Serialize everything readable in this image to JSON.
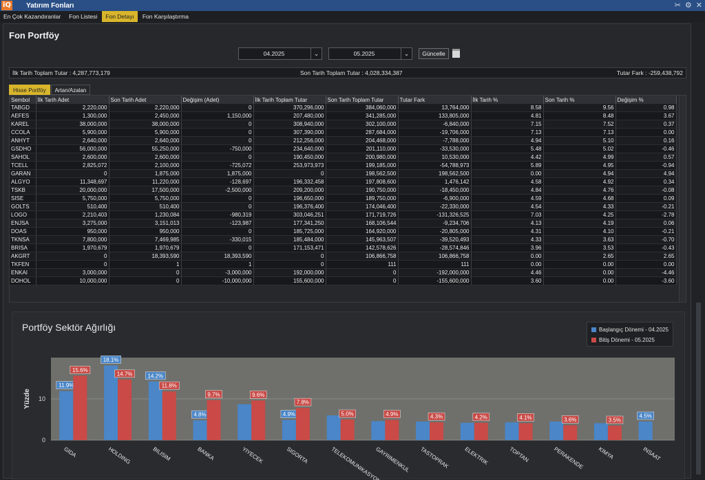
{
  "app": {
    "logo": "iQ",
    "title": "Yatırım Fonları"
  },
  "icons": [
    "tools-icon",
    "settings-icon",
    "close-icon"
  ],
  "menu": {
    "tabs": [
      {
        "label": "En Çok Kazandıranlar",
        "active": false
      },
      {
        "label": "Fon Listesi",
        "active": false
      },
      {
        "label": "Fon Detayı",
        "active": true
      },
      {
        "label": "Fon Karşılaştırma",
        "active": false
      }
    ]
  },
  "page": {
    "title": "Fon Portföy"
  },
  "filters": {
    "start_date": "04.2025",
    "end_date": "05.2025",
    "update_label": "Güncelle"
  },
  "summary": {
    "first_total": "İlk Tarih Toplam Tutar : 4,287,773,179",
    "last_total": "Son Tarih Toplam Tutar : 4,028,334,387",
    "diff": "Tutar Fark : -259,438,792"
  },
  "subtabs": [
    {
      "label": "Hisse Portföy",
      "active": true
    },
    {
      "label": "Artan/Azalan",
      "active": false
    }
  ],
  "table": {
    "columns": [
      "Sembol",
      "İlk Tarih Adet",
      "Son Tarih Adet",
      "Değişim (Adet)",
      "İlk Tarih Toplam Tutar",
      "Son Tarih Toplam Tutar",
      "Tutar Fark",
      "İlk Tarih %",
      "Son Tarih %",
      "Değişim %"
    ],
    "rows": [
      [
        "TABGD",
        "2,220,000",
        "2,220,000",
        "0",
        "370,296,000",
        "384,060,000",
        "13,764,000",
        "8.58",
        "9.56",
        "0.98"
      ],
      [
        "AEFES",
        "1,300,000",
        "2,450,000",
        "1,150,000",
        "207,480,000",
        "341,285,000",
        "133,805,000",
        "4.81",
        "8.48",
        "3.67"
      ],
      [
        "KAREL",
        "38,000,000",
        "38,000,000",
        "0",
        "308,940,000",
        "302,100,000",
        "-6,840,000",
        "7.15",
        "7.52",
        "0.37"
      ],
      [
        "CCOLA",
        "5,900,000",
        "5,900,000",
        "0",
        "307,390,000",
        "287,684,000",
        "-19,706,000",
        "7.13",
        "7.13",
        "0.00"
      ],
      [
        "ANHYT",
        "2,640,000",
        "2,640,000",
        "0",
        "212,256,000",
        "204,468,000",
        "-7,788,000",
        "4.94",
        "5.10",
        "0.16"
      ],
      [
        "GSDHO",
        "56,000,000",
        "55,250,000",
        "-750,000",
        "234,640,000",
        "201,110,000",
        "-33,530,000",
        "5.48",
        "5.02",
        "-0.46"
      ],
      [
        "SAHOL",
        "2,600,000",
        "2,600,000",
        "0",
        "190,450,000",
        "200,980,000",
        "10,530,000",
        "4.42",
        "4.99",
        "0.57"
      ],
      [
        "TCELL",
        "2,825,072",
        "2,100,000",
        "-725,072",
        "253,973,973",
        "199,185,000",
        "-54,788,973",
        "5.89",
        "4.95",
        "-0.94"
      ],
      [
        "GARAN",
        "0",
        "1,875,000",
        "1,875,000",
        "0",
        "198,562,500",
        "198,562,500",
        "0.00",
        "4.94",
        "4.94"
      ],
      [
        "ALGYO",
        "11,348,697",
        "11,220,000",
        "-128,697",
        "196,332,458",
        "197,808,600",
        "1,476,142",
        "4.58",
        "4.92",
        "0.34"
      ],
      [
        "TSKB",
        "20,000,000",
        "17,500,000",
        "-2,500,000",
        "209,200,000",
        "190,750,000",
        "-18,450,000",
        "4.84",
        "4.76",
        "-0.08"
      ],
      [
        "SISE",
        "5,750,000",
        "5,750,000",
        "0",
        "196,650,000",
        "189,750,000",
        "-6,900,000",
        "4.59",
        "4.68",
        "0.09"
      ],
      [
        "GOLTS",
        "510,400",
        "510,400",
        "0",
        "196,376,400",
        "174,046,400",
        "-22,330,000",
        "4.54",
        "4.33",
        "-0.21"
      ],
      [
        "LOGO",
        "2,210,403",
        "1,230,084",
        "-980,319",
        "303,046,251",
        "171,719,726",
        "-131,326,525",
        "7.03",
        "4.25",
        "-2.78"
      ],
      [
        "ENJSA",
        "3,275,000",
        "3,151,013",
        "-123,987",
        "177,341,250",
        "168,106,544",
        "-9,234,706",
        "4.13",
        "4.19",
        "0.06"
      ],
      [
        "DOAS",
        "950,000",
        "950,000",
        "0",
        "185,725,000",
        "164,920,000",
        "-20,805,000",
        "4.31",
        "4.10",
        "-0.21"
      ],
      [
        "TKNSA",
        "7,800,000",
        "7,469,985",
        "-330,015",
        "185,484,000",
        "145,963,507",
        "-39,520,493",
        "4.33",
        "3.63",
        "-0.70"
      ],
      [
        "BRISA",
        "1,970,679",
        "1,970,679",
        "0",
        "171,153,471",
        "142,578,626",
        "-28,574,846",
        "3.96",
        "3.53",
        "-0.43"
      ],
      [
        "AKGRT",
        "0",
        "18,393,590",
        "18,393,590",
        "0",
        "106,866,758",
        "106,866,758",
        "0.00",
        "2.65",
        "2.65"
      ],
      [
        "TKFEN",
        "0",
        "1",
        "1",
        "0",
        "111",
        "111",
        "0.00",
        "0.00",
        "0.00"
      ],
      [
        "ENKAI",
        "3,000,000",
        "0",
        "-3,000,000",
        "192,000,000",
        "0",
        "-192,000,000",
        "4.46",
        "0.00",
        "-4.46"
      ],
      [
        "DOHOL",
        "10,000,000",
        "0",
        "-10,000,000",
        "155,600,000",
        "0",
        "-155,600,000",
        "3.60",
        "0.00",
        "-3.60"
      ]
    ]
  },
  "chart_data": {
    "type": "bar",
    "title": "Portföy Sektör Ağırlığı",
    "ylabel": "Yüzde",
    "ylim": [
      0,
      20
    ],
    "yticks": [
      "0",
      "10"
    ],
    "legend_position": "top-right",
    "categories": [
      "GIDA",
      "HOLDING",
      "BILISIM",
      "BANKA",
      "YIYECEK",
      "SIGORTA",
      "TELEKOMUNIKASYON",
      "GAYRIMENKUL",
      "TASTOPRAK",
      "ELEKTRIK",
      "TOPTAN",
      "PERAKENDE",
      "KIMYA",
      "INSAAT"
    ],
    "series": [
      {
        "name": "Başlangıç Dönemi - 04.2025",
        "color": "#4a86c8",
        "values": [
          11.9,
          18.1,
          14.2,
          4.8,
          8.7,
          4.9,
          6.0,
          4.6,
          4.5,
          4.2,
          4.3,
          4.5,
          4.1,
          4.5
        ],
        "labels": [
          "11.9%",
          "18.1%",
          "14.2%",
          "4.8%",
          "",
          "4.9%",
          "",
          "",
          "",
          "",
          "",
          "",
          "",
          "4.5%"
        ]
      },
      {
        "name": "Bitiş Dönemi - 05.2025",
        "color": "#c94a46",
        "values": [
          15.6,
          14.7,
          11.8,
          9.7,
          9.6,
          7.8,
          5.0,
          4.9,
          4.3,
          4.2,
          4.1,
          3.6,
          3.5,
          0
        ],
        "labels": [
          "15.6%",
          "14.7%",
          "11.8%",
          "9.7%",
          "9.6%",
          "7.8%",
          "5.0%",
          "4.9%",
          "4.3%",
          "4.2%",
          "4.1%",
          "3.6%",
          "3.5%",
          ""
        ]
      }
    ]
  }
}
